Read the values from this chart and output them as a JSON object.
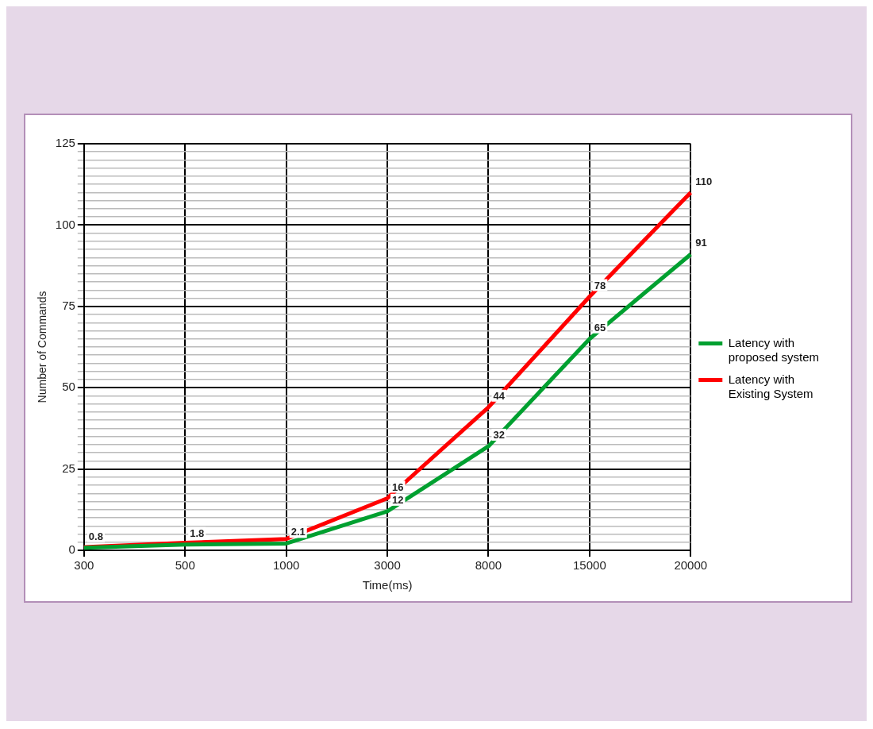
{
  "chart_data": {
    "type": "line",
    "xlabel": "Time(ms)",
    "ylabel": "Number of Commands",
    "categories": [
      "300",
      "500",
      "1000",
      "3000",
      "8000",
      "15000",
      "20000"
    ],
    "series": [
      {
        "name": "Latency with proposed system",
        "color": "#00a030",
        "values": [
          0.8,
          1.8,
          2.1,
          12,
          32,
          65,
          91
        ],
        "value_labels": [
          "0.8",
          "1.8",
          "2.1",
          "12",
          "32",
          "65",
          "91"
        ]
      },
      {
        "name": "Latency with Existing System",
        "color": "#ff0000",
        "values": [
          1,
          2.3,
          3.5,
          16,
          44,
          78,
          110
        ],
        "value_labels": [
          null,
          null,
          null,
          "16",
          "44",
          "78",
          "110"
        ]
      }
    ],
    "ylim": [
      0,
      125
    ],
    "yticks": [
      0,
      {
        "value": 2.5,
        "label": null
      },
      {
        "value": 5,
        "label": null
      },
      {
        "value": 7.5,
        "label": null
      },
      {
        "value": 10,
        "label": null
      },
      {
        "value": 12.5,
        "label": null
      },
      {
        "value": 15,
        "label": null
      },
      {
        "value": 17.5,
        "label": null
      },
      {
        "value": 20,
        "label": null
      },
      {
        "value": 22.5,
        "label": null
      },
      25,
      {
        "value": 27.5,
        "label": null
      },
      {
        "value": 30,
        "label": null
      },
      {
        "value": 32.5,
        "label": null
      },
      {
        "value": 35,
        "label": null
      },
      {
        "value": 37.5,
        "label": null
      },
      {
        "value": 40,
        "label": null
      },
      {
        "value": 42.5,
        "label": null
      },
      {
        "value": 45,
        "label": null
      },
      {
        "value": 47.5,
        "label": null
      },
      50,
      {
        "value": 52.5,
        "label": null
      },
      {
        "value": 55,
        "label": null
      },
      {
        "value": 57.5,
        "label": null
      },
      {
        "value": 60,
        "label": null
      },
      {
        "value": 62.5,
        "label": null
      },
      {
        "value": 65,
        "label": null
      },
      {
        "value": 67.5,
        "label": null
      },
      {
        "value": 70,
        "label": null
      },
      {
        "value": 72.5,
        "label": null
      },
      75,
      {
        "value": 77.5,
        "label": null
      },
      {
        "value": 80,
        "label": null
      },
      {
        "value": 82.5,
        "label": null
      },
      {
        "value": 85,
        "label": null
      },
      {
        "value": 87.5,
        "label": null
      },
      {
        "value": 90,
        "label": null
      },
      {
        "value": 92.5,
        "label": null
      },
      {
        "value": 95,
        "label": null
      },
      {
        "value": 97.5,
        "label": null
      },
      100,
      {
        "value": 102.5,
        "label": null
      },
      {
        "value": 105,
        "label": null
      },
      {
        "value": 107.5,
        "label": null
      },
      {
        "value": 110,
        "label": null
      },
      {
        "value": 112.5,
        "label": null
      },
      {
        "value": 115,
        "label": null
      },
      {
        "value": 117.5,
        "label": null
      },
      {
        "value": 120,
        "label": null
      },
      {
        "value": 122.5,
        "label": null
      },
      125
    ],
    "grid": true,
    "legend": "right",
    "marker": "none",
    "line_style": "solid"
  }
}
